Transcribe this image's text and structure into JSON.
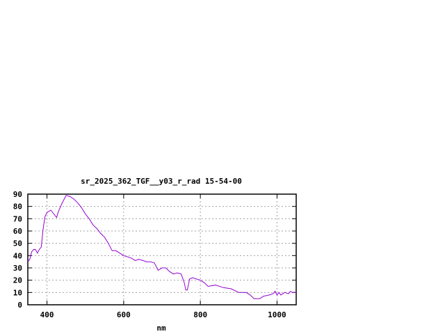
{
  "chart_data": {
    "type": "line",
    "title": "sr_2025_362_TGF__y03_r_rad 15-54-00",
    "xlabel": "nm",
    "ylabel": "",
    "xlim": [
      350,
      1050
    ],
    "ylim": [
      0,
      90
    ],
    "xticks": [
      400,
      600,
      800,
      1000
    ],
    "yticks": [
      0,
      10,
      20,
      30,
      40,
      50,
      60,
      70,
      80,
      90
    ],
    "grid": true,
    "line_color": "#9400d3",
    "series": [
      {
        "x": [
          350,
          355,
          360,
          365,
          370,
          375,
          380,
          385,
          390,
          395,
          400,
          410,
          415,
          425,
          430,
          440,
          450,
          460,
          470,
          480,
          490,
          500,
          510,
          520,
          530,
          540,
          550,
          560,
          570,
          580,
          590,
          600,
          620,
          630,
          640,
          650,
          660,
          670,
          680,
          690,
          700,
          710,
          720,
          730,
          740,
          750,
          758,
          762,
          766,
          772,
          780,
          800,
          810,
          820,
          840,
          860,
          880,
          900,
          920,
          930,
          940,
          955,
          965,
          980,
          990,
          995,
          1000,
          1005,
          1010,
          1020,
          1030,
          1035,
          1040,
          1050
        ],
        "y": [
          35,
          37,
          43,
          45,
          45,
          42,
          45,
          47,
          62,
          72,
          75,
          77,
          75,
          71,
          76,
          83,
          89,
          88,
          86,
          83,
          79,
          74,
          70,
          65,
          62,
          58,
          55,
          50,
          44,
          44,
          42,
          40,
          38,
          36,
          37,
          36,
          35,
          35,
          34,
          28,
          30,
          30,
          27,
          25,
          26,
          25,
          18,
          12,
          12,
          21,
          22,
          20,
          18,
          15,
          16,
          14,
          13,
          10,
          10,
          8,
          5,
          5,
          7,
          8,
          9,
          11,
          8,
          10,
          8,
          10,
          9,
          11,
          10,
          10
        ]
      }
    ]
  }
}
